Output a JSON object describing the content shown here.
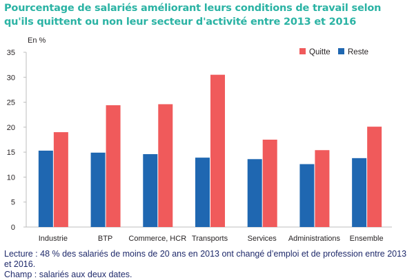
{
  "title": "Pourcentage de salariés améliorant leurs conditions de travail selon qu'ils quittent ou non leur secteur d'activité entre 2013 et 2016",
  "notes": {
    "lecture": "Lecture : 48 % des salariés  de moins de 20 ans en 2013 ont changé d’emploi et de profession entre 2013 et 2016.",
    "champ": "Champ : salariés aux deux dates."
  },
  "chart_data": {
    "type": "bar",
    "ylabel": "En %",
    "ylim": [
      0,
      35
    ],
    "yticks": [
      0,
      5,
      10,
      15,
      20,
      25,
      30,
      35
    ],
    "grid": false,
    "legend_position": "top-right",
    "categories": [
      "Industrie",
      "BTP",
      "Commerce, HCR",
      "Transports",
      "Services",
      "Administrations",
      "Ensemble"
    ],
    "series": [
      {
        "name": "Reste",
        "color": "#1f67b1",
        "values": [
          15.3,
          14.9,
          14.6,
          13.9,
          13.6,
          12.6,
          13.8
        ]
      },
      {
        "name": "Quitte",
        "color": "#f05a5b",
        "values": [
          19.0,
          24.4,
          24.6,
          30.5,
          17.5,
          15.4,
          20.1
        ]
      }
    ],
    "legend_order": [
      "Quitte",
      "Reste"
    ]
  }
}
